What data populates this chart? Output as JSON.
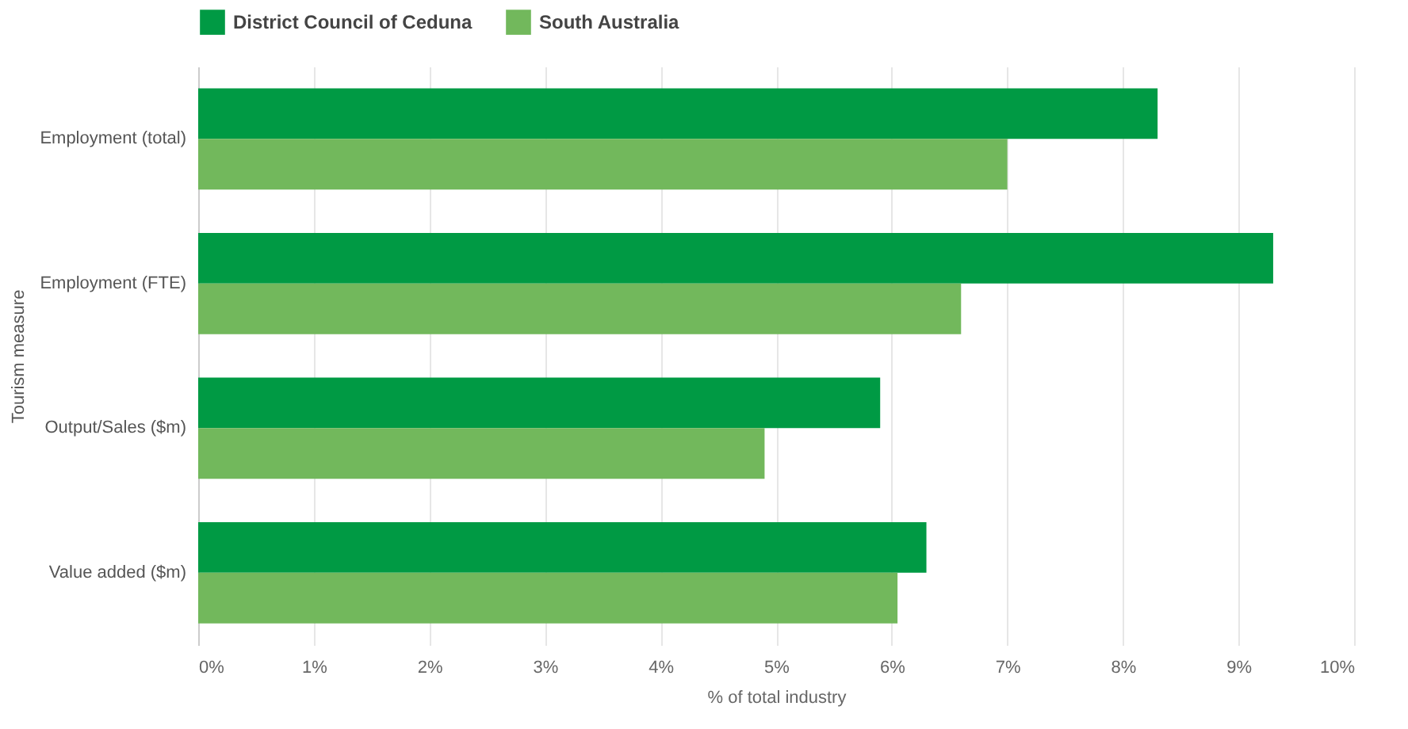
{
  "chart_data": {
    "type": "bar",
    "orientation": "horizontal",
    "categories": [
      "Employment (total)",
      "Employment (FTE)",
      "Output/Sales ($m)",
      "Value added ($m)"
    ],
    "series": [
      {
        "name": "District Council of Ceduna",
        "color": "#009a44",
        "values": [
          8.3,
          9.3,
          5.9,
          6.3
        ]
      },
      {
        "name": "South Australia",
        "color": "#72b85c",
        "values": [
          7.0,
          6.6,
          4.9,
          6.05
        ]
      }
    ],
    "xlabel": "% of total industry",
    "ylabel": "Tourism measure",
    "xlim": [
      0,
      10
    ],
    "xticks": [
      {
        "value": 0,
        "label": "0%"
      },
      {
        "value": 1,
        "label": "1%"
      },
      {
        "value": 2,
        "label": "2%"
      },
      {
        "value": 3,
        "label": "3%"
      },
      {
        "value": 4,
        "label": "4%"
      },
      {
        "value": 5,
        "label": "5%"
      },
      {
        "value": 6,
        "label": "6%"
      },
      {
        "value": 7,
        "label": "7%"
      },
      {
        "value": 8,
        "label": "8%"
      },
      {
        "value": 9,
        "label": "9%"
      },
      {
        "value": 10,
        "label": "10%"
      }
    ],
    "grid": "x",
    "legend": "top left"
  }
}
